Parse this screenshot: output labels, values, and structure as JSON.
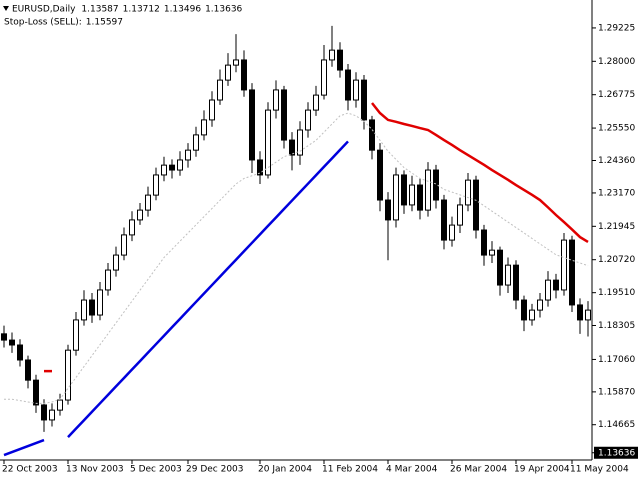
{
  "chart_data": {
    "type": "candlestick",
    "title": "EURUSD,Daily",
    "header_values": [
      1.13587,
      1.13712,
      1.13496,
      1.13636
    ],
    "stop_loss_label": "Stop-Loss (SELL):",
    "stop_loss_value": 1.15597,
    "current_price": 1.13636,
    "color": "#000000",
    "up_color": "#ffffff",
    "down_color": "#000000",
    "categories": [
      "22 Oct 2003",
      null,
      null,
      null,
      null,
      null,
      null,
      null,
      "13 Nov 2003",
      null,
      null,
      null,
      null,
      null,
      null,
      null,
      "5 Dec 2003",
      null,
      null,
      null,
      null,
      null,
      null,
      "29 Dec 2003",
      null,
      null,
      null,
      null,
      null,
      null,
      null,
      null,
      "20 Jan 2004",
      null,
      null,
      null,
      null,
      null,
      null,
      null,
      "11 Feb 2004",
      null,
      null,
      null,
      null,
      null,
      null,
      null,
      "4 Mar 2004",
      null,
      null,
      null,
      null,
      null,
      null,
      null,
      "26 Mar 2004",
      null,
      null,
      null,
      null,
      null,
      null,
      null,
      "19 Apr 2004",
      null,
      null,
      null,
      null,
      null,
      null,
      "11 May 2004",
      null,
      null
    ],
    "open": [
      1.18,
      1.1777,
      1.1759,
      1.1704,
      1.163,
      1.1539,
      1.1484,
      1.152,
      1.1557,
      1.174,
      1.1851,
      1.1924,
      1.1869,
      1.1961,
      1.2034,
      1.2089,
      1.2163,
      1.2218,
      1.2254,
      1.2309,
      1.2383,
      1.2419,
      1.2401,
      1.2438,
      1.2474,
      1.253,
      1.2585,
      1.2658,
      1.2731,
      1.2786,
      1.2805,
      1.2695,
      1.2438,
      1.2383,
      1.2621,
      1.2695,
      1.2511,
      1.2456,
      1.2548,
      1.2621,
      1.2676,
      1.2805,
      1.2841,
      1.2768,
      1.2658,
      1.2731,
      1.2585,
      1.2474,
      1.2291,
      1.2218,
      1.2383,
      1.2273,
      1.2346,
      1.2254,
      1.2401,
      1.2291,
      1.2144,
      1.2199,
      1.2273,
      1.2364,
      1.2181,
      1.2089,
      1.2107,
      1.1979,
      1.2052,
      1.1924,
      1.1851,
      1.1887,
      1.1924,
      1.1997,
      1.1961,
      1.2144,
      1.1906,
      1.1851
    ],
    "high": [
      1.183,
      1.1805,
      1.178,
      1.172,
      1.165,
      1.156,
      1.1545,
      1.158,
      1.176,
      1.188,
      1.196,
      1.195,
      1.199,
      1.206,
      1.212,
      1.219,
      1.225,
      1.228,
      1.234,
      1.241,
      1.245,
      1.244,
      1.247,
      1.25,
      1.256,
      1.262,
      1.269,
      1.277,
      1.283,
      1.29,
      1.284,
      1.272,
      1.247,
      1.265,
      1.273,
      1.271,
      1.254,
      1.258,
      1.265,
      1.271,
      1.286,
      1.293,
      1.287,
      1.279,
      1.276,
      1.275,
      1.26,
      1.25,
      1.232,
      1.241,
      1.24,
      1.238,
      1.237,
      1.243,
      1.242,
      1.231,
      1.223,
      1.23,
      1.239,
      1.238,
      1.22,
      1.214,
      1.212,
      1.208,
      1.207,
      1.194,
      1.191,
      1.195,
      1.203,
      1.202,
      1.217,
      1.216,
      1.193,
      1.192
    ],
    "low": [
      1.175,
      1.173,
      1.168,
      1.16,
      1.151,
      1.144,
      1.146,
      1.15,
      1.154,
      1.172,
      1.183,
      1.184,
      1.185,
      1.194,
      1.201,
      1.207,
      1.214,
      1.22,
      1.223,
      1.229,
      1.236,
      1.237,
      1.238,
      1.241,
      1.245,
      1.251,
      1.256,
      1.264,
      1.271,
      1.276,
      1.267,
      1.239,
      1.235,
      1.237,
      1.259,
      1.248,
      1.24,
      1.242,
      1.252,
      1.26,
      1.266,
      1.278,
      1.274,
      1.262,
      1.263,
      1.255,
      1.244,
      1.225,
      1.207,
      1.219,
      1.224,
      1.225,
      1.222,
      1.223,
      1.226,
      1.211,
      1.212,
      1.217,
      1.225,
      1.215,
      1.205,
      1.206,
      1.194,
      1.195,
      1.189,
      1.181,
      1.183,
      1.186,
      1.19,
      1.193,
      1.194,
      1.188,
      1.18,
      1.179
    ],
    "close": [
      1.1777,
      1.1759,
      1.1704,
      1.163,
      1.1539,
      1.1484,
      1.152,
      1.1557,
      1.174,
      1.1851,
      1.1924,
      1.1869,
      1.1961,
      1.2034,
      1.2089,
      1.2163,
      1.2218,
      1.2254,
      1.2309,
      1.2383,
      1.2419,
      1.2401,
      1.2438,
      1.2474,
      1.253,
      1.2585,
      1.2658,
      1.2731,
      1.2786,
      1.2805,
      1.2695,
      1.2438,
      1.2383,
      1.2621,
      1.2695,
      1.2511,
      1.2456,
      1.2548,
      1.2621,
      1.2676,
      1.2805,
      1.2841,
      1.2768,
      1.2658,
      1.2731,
      1.2585,
      1.2474,
      1.2291,
      1.2218,
      1.2383,
      1.2273,
      1.2346,
      1.2254,
      1.2401,
      1.2291,
      1.2144,
      1.2199,
      1.2273,
      1.2364,
      1.2181,
      1.2089,
      1.2107,
      1.1979,
      1.2052,
      1.1924,
      1.1851,
      1.1887,
      1.1924,
      1.1997,
      1.1961,
      1.2144,
      1.1906,
      1.1851,
      1.1887
    ],
    "series": [
      {
        "color": "#c0c0c0",
        "dashed": true,
        "width": 1,
        "values": [
          1.156,
          1.156,
          1.1555,
          1.155,
          1.1545,
          1.1545,
          1.155,
          1.156,
          1.16,
          1.164,
          1.168,
          1.172,
          1.176,
          1.18,
          1.184,
          1.188,
          1.192,
          1.196,
          1.2,
          1.204,
          1.208,
          1.211,
          1.214,
          1.217,
          1.22,
          1.223,
          1.226,
          1.229,
          1.232,
          1.235,
          1.237,
          1.238,
          1.239,
          1.241,
          1.243,
          1.245,
          1.246,
          1.247,
          1.249,
          1.251,
          1.254,
          1.257,
          1.26,
          1.261,
          1.26,
          1.258,
          1.255,
          1.251,
          1.247,
          1.244,
          1.241,
          1.239,
          1.237,
          1.236,
          1.235,
          1.233,
          1.232,
          1.231,
          1.23,
          1.229,
          1.227,
          1.225,
          1.223,
          1.221,
          1.219,
          1.217,
          1.215,
          1.213,
          1.211,
          1.209,
          1.208,
          1.207,
          1.206,
          1.205
        ]
      },
      {
        "color": "#0000dd",
        "dashed": false,
        "width": 2.5,
        "values": [
          1.1355,
          1.1366,
          1.1377,
          1.1388,
          1.1399,
          1.141,
          null,
          null,
          1.1421,
          1.1452,
          1.1483,
          1.1514,
          1.1545,
          1.1576,
          1.1607,
          1.1638,
          1.1669,
          1.17,
          1.1731,
          1.1762,
          1.1793,
          1.1824,
          1.1855,
          1.1886,
          1.1917,
          1.1948,
          1.1979,
          1.201,
          1.2041,
          1.2072,
          1.2103,
          1.2134,
          1.2165,
          1.2196,
          1.2227,
          1.2258,
          1.2289,
          1.232,
          1.2351,
          1.2382,
          1.2413,
          1.2444,
          1.2475,
          1.2506,
          null,
          null,
          null,
          null,
          null,
          null,
          null,
          null,
          null,
          null,
          null,
          null,
          null,
          null,
          null,
          null,
          null,
          null,
          null,
          null,
          null,
          null,
          null,
          null,
          null,
          null,
          null,
          null,
          null,
          null
        ]
      },
      {
        "color": "#e00000",
        "dashed": false,
        "width": 2.5,
        "values": [
          null,
          null,
          null,
          null,
          null,
          1.1663,
          1.1663,
          null,
          null,
          null,
          null,
          null,
          null,
          null,
          null,
          null,
          null,
          null,
          null,
          null,
          null,
          null,
          null,
          null,
          null,
          null,
          null,
          null,
          null,
          null,
          null,
          null,
          null,
          null,
          null,
          null,
          null,
          null,
          null,
          null,
          null,
          null,
          null,
          null,
          null,
          null,
          1.2647,
          1.261,
          1.2585,
          1.2578,
          1.257,
          1.2563,
          1.2555,
          1.2548,
          1.253,
          1.2511,
          1.2493,
          1.2474,
          1.2456,
          1.2438,
          1.242,
          1.2401,
          1.2383,
          1.2365,
          1.2346,
          1.2328,
          1.231,
          1.2291,
          1.2264,
          1.2236,
          1.221,
          1.2183,
          1.2155,
          1.2137
        ]
      }
    ],
    "ylim": [
      1.1337,
      1.3025
    ],
    "yticks": [
      1.29225,
      {
        "value": 1.28,
        "label": "1.28000"
      },
      1.26775,
      {
        "value": 1.2555,
        "label": "1.25550"
      },
      {
        "value": 1.2436,
        "label": "1.24360"
      },
      {
        "value": 1.2317,
        "label": "1.23170"
      },
      1.21945,
      {
        "value": 1.2072,
        "label": "1.20720"
      },
      {
        "value": 1.1951,
        "label": "1.19510"
      },
      1.18305,
      {
        "value": 1.1706,
        "label": "1.17060"
      },
      {
        "value": 1.1587,
        "label": "1.15870"
      },
      1.14665
    ]
  }
}
